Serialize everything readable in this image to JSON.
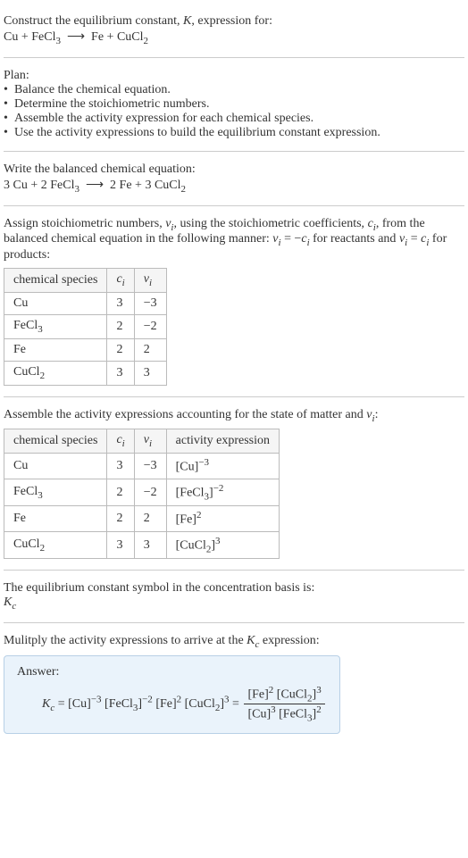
{
  "header": {
    "prompt_line1": "Construct the equilibrium constant, ",
    "K": "K",
    "prompt_line1b": ", expression for:",
    "reactants": "Cu + FeCl",
    "r_sub": "3",
    "arrow": "⟶",
    "products": "Fe + CuCl",
    "p_sub": "2"
  },
  "plan": {
    "title": "Plan:",
    "bullets": [
      "Balance the chemical equation.",
      "Determine the stoichiometric numbers.",
      "Assemble the activity expression for each chemical species.",
      "Use the activity expressions to build the equilibrium constant expression."
    ]
  },
  "balanced": {
    "title": "Write the balanced chemical equation:",
    "lhs1": "3 Cu + 2 FeCl",
    "lhs_sub": "3",
    "arrow": "⟶",
    "rhs1": "2 Fe + 3 CuCl",
    "rhs_sub": "2"
  },
  "stoich_text": {
    "part1": "Assign stoichiometric numbers, ",
    "vi": "ν",
    "vi_sub": "i",
    "part2": ", using the stoichiometric coefficients, ",
    "ci": "c",
    "ci_sub": "i",
    "part3": ", from the balanced chemical equation in the following manner: ",
    "eq1a": "ν",
    "eq1b": " = −",
    "eq1c": "c",
    "part4": " for reactants and ",
    "eq2a": "ν",
    "eq2b": " = ",
    "eq2c": "c",
    "part5": " for products:"
  },
  "table1": {
    "headers": {
      "h1": "chemical species",
      "h2_c": "c",
      "h2_sub": "i",
      "h3_v": "ν",
      "h3_sub": "i"
    },
    "rows": [
      {
        "species": "Cu",
        "sub": "",
        "c": "3",
        "v": "−3"
      },
      {
        "species": "FeCl",
        "sub": "3",
        "c": "2",
        "v": "−2"
      },
      {
        "species": "Fe",
        "sub": "",
        "c": "2",
        "v": "2"
      },
      {
        "species": "CuCl",
        "sub": "2",
        "c": "3",
        "v": "3"
      }
    ]
  },
  "assemble_text": {
    "part1": "Assemble the activity expressions accounting for the state of matter and ",
    "vi": "ν",
    "vi_sub": "i",
    "colon": ":"
  },
  "table2": {
    "headers": {
      "h1": "chemical species",
      "h2_c": "c",
      "h2_sub": "i",
      "h3_v": "ν",
      "h3_sub": "i",
      "h4": "activity expression"
    },
    "rows": [
      {
        "species": "Cu",
        "sub": "",
        "c": "3",
        "v": "−3",
        "act_base": "[Cu]",
        "act_sup": "−3"
      },
      {
        "species": "FeCl",
        "sub": "3",
        "c": "2",
        "v": "−2",
        "act_base": "[FeCl",
        "act_base_sub": "3",
        "act_close": "]",
        "act_sup": "−2"
      },
      {
        "species": "Fe",
        "sub": "",
        "c": "2",
        "v": "2",
        "act_base": "[Fe]",
        "act_sup": "2"
      },
      {
        "species": "CuCl",
        "sub": "2",
        "c": "3",
        "v": "3",
        "act_base": "[CuCl",
        "act_base_sub": "2",
        "act_close": "]",
        "act_sup": "3"
      }
    ]
  },
  "kc_symbol_text": "The equilibrium constant symbol in the concentration basis is:",
  "kc_symbol": {
    "K": "K",
    "sub": "c"
  },
  "multiply_text": {
    "part1": "Mulitply the activity expressions to arrive at the ",
    "K": "K",
    "sub": "c",
    "part2": " expression:"
  },
  "answer": {
    "label": "Answer:",
    "Kc": "K",
    "Kc_sub": "c",
    "eq": " = ",
    "t1": "[Cu]",
    "s1": "−3",
    "t2": " [FeCl",
    "t2_sub": "3",
    "t2_close": "]",
    "s2": "−2",
    "t3": " [Fe]",
    "s3": "2",
    "t4": " [CuCl",
    "t4_sub": "2",
    "t4_close": "]",
    "s4": "3",
    "eq2": " = ",
    "num1": "[Fe]",
    "num1_sup": "2",
    "num2": " [CuCl",
    "num2_sub": "2",
    "num2_close": "]",
    "num2_sup": "3",
    "den1": "[Cu]",
    "den1_sup": "3",
    "den2": " [FeCl",
    "den2_sub": "3",
    "den2_close": "]",
    "den2_sup": "2"
  }
}
